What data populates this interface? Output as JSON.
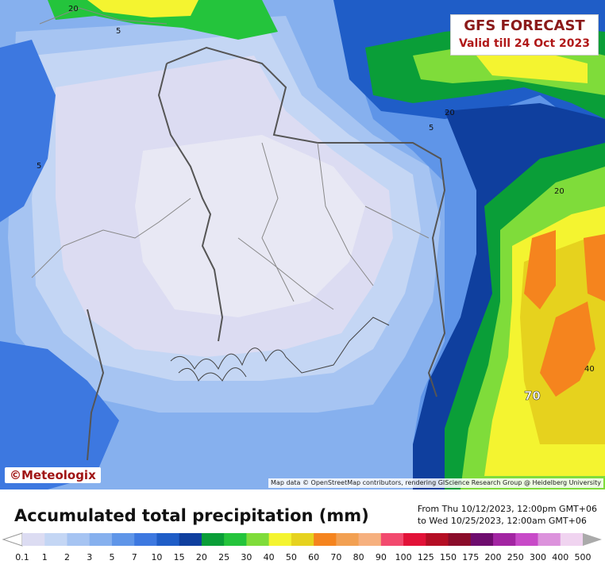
{
  "header": {
    "line1": "GFS FORECAST",
    "line2": "Valid till 24 Oct 2023"
  },
  "branding": {
    "logo": "©Meteologix",
    "attribution": "Map data © OpenStreetMap contributors, rendering GIScience Research Group @ Heidelberg University"
  },
  "legend": {
    "title": "Accumulated total precipitation (mm)",
    "period_from": "From Thu 10/12/2023, 12:00pm GMT+06",
    "period_to": "to Wed 10/25/2023, 12:00am GMT+06",
    "unit": "mm",
    "classes": [
      {
        "label": "0.1",
        "color": "#dcdcf2"
      },
      {
        "label": "1",
        "color": "#c4d6f4"
      },
      {
        "label": "2",
        "color": "#a6c4f2"
      },
      {
        "label": "3",
        "color": "#86b0ee"
      },
      {
        "label": "5",
        "color": "#5f95e8"
      },
      {
        "label": "7",
        "color": "#3d78e0"
      },
      {
        "label": "10",
        "color": "#1f5dc7"
      },
      {
        "label": "15",
        "color": "#0f3f9e"
      },
      {
        "label": "20",
        "color": "#0a9e38"
      },
      {
        "label": "25",
        "color": "#24c43c"
      },
      {
        "label": "30",
        "color": "#7fdc3a"
      },
      {
        "label": "40",
        "color": "#f4f430"
      },
      {
        "label": "50",
        "color": "#e6d21e"
      },
      {
        "label": "60",
        "color": "#f5841e"
      },
      {
        "label": "70",
        "color": "#f2a052"
      },
      {
        "label": "80",
        "color": "#f6b07e"
      },
      {
        "label": "90",
        "color": "#f24a6e"
      },
      {
        "label": "100",
        "color": "#e21238"
      },
      {
        "label": "125",
        "color": "#b40e24"
      },
      {
        "label": "150",
        "color": "#8a0c2a"
      },
      {
        "label": "175",
        "color": "#6e0c6e"
      },
      {
        "label": "200",
        "color": "#a224a2"
      },
      {
        "label": "250",
        "color": "#c84ac8"
      },
      {
        "label": "300",
        "color": "#dc92dc"
      },
      {
        "label": "400",
        "color": "#f0d4f0"
      },
      {
        "label": "500",
        "color": "#f6f6f6"
      }
    ]
  },
  "contour_labels": [
    "20",
    "5",
    "5",
    "20",
    "5",
    "20",
    "40",
    "70"
  ]
}
